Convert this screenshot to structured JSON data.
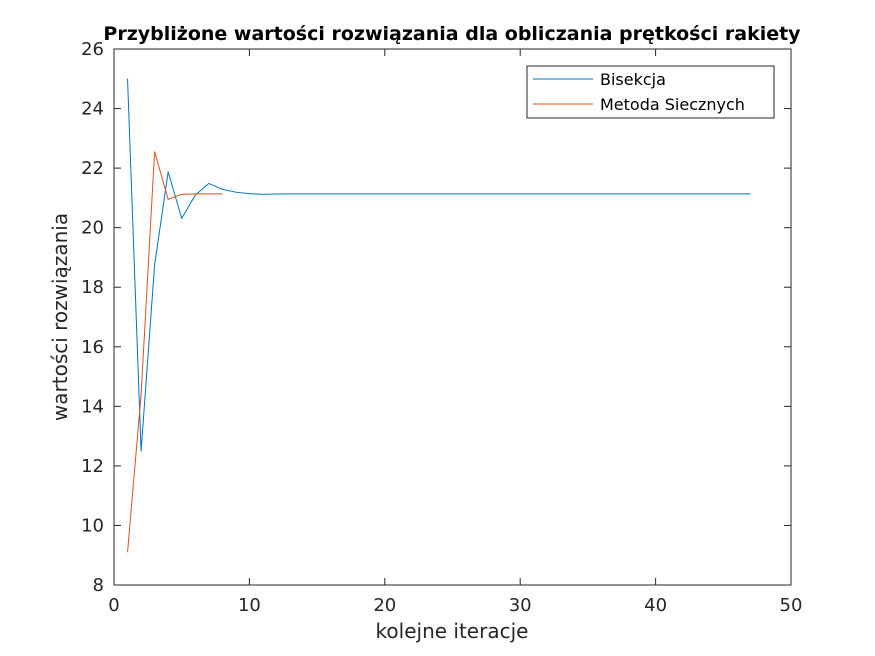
{
  "chart_data": {
    "type": "line",
    "title": "Przybliżone wartości rozwiązania dla obliczania prętkości rakiety",
    "xlabel": "kolejne iteracje",
    "ylabel": "wartości rozwiązania",
    "xlim": [
      0,
      50
    ],
    "ylim": [
      8,
      26
    ],
    "xticks": [
      0,
      10,
      20,
      30,
      40,
      50
    ],
    "yticks": [
      8,
      10,
      12,
      14,
      16,
      18,
      20,
      22,
      24,
      26
    ],
    "grid": false,
    "legend_position": "top-right",
    "series": [
      {
        "name": "Bisekcja",
        "color": "#0072BD",
        "x": [
          1,
          2,
          3,
          4,
          5,
          6,
          7,
          8,
          9,
          10,
          11,
          12,
          13,
          14,
          15,
          16,
          17,
          18,
          19,
          20,
          21,
          22,
          23,
          24,
          25,
          26,
          27,
          28,
          29,
          30,
          31,
          32,
          33,
          34,
          35,
          36,
          37,
          38,
          39,
          40,
          41,
          42,
          43,
          44,
          45,
          46,
          47
        ],
        "y": [
          25.0,
          12.5,
          18.75,
          21.875,
          20.3125,
          21.0938,
          21.4844,
          21.2891,
          21.1914,
          21.1426,
          21.1182,
          21.1304,
          21.1365,
          21.1334,
          21.1349,
          21.1342,
          21.1345,
          21.1344,
          21.1344,
          21.1344,
          21.1344,
          21.1344,
          21.1344,
          21.1344,
          21.1344,
          21.1344,
          21.1344,
          21.1344,
          21.1344,
          21.1344,
          21.1344,
          21.1344,
          21.1344,
          21.1344,
          21.1344,
          21.1344,
          21.1344,
          21.1344,
          21.1344,
          21.1344,
          21.1344,
          21.1344,
          21.1344,
          21.1344,
          21.1344,
          21.1344,
          21.1344
        ]
      },
      {
        "name": "Metoda Siecznych",
        "color": "#D95319",
        "x": [
          1,
          2,
          3,
          4,
          5,
          6,
          7,
          8
        ],
        "y": [
          9.1,
          14.4,
          22.55,
          20.95,
          21.12,
          21.134,
          21.1344,
          21.1344
        ]
      }
    ]
  }
}
